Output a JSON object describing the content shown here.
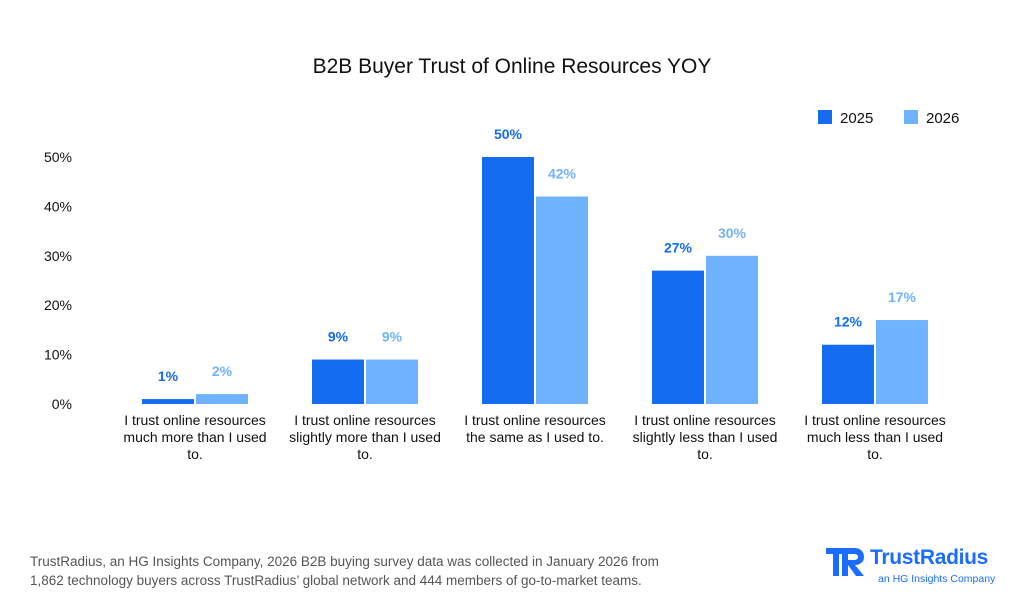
{
  "chart_data": {
    "type": "bar",
    "title": "B2B Buyer Trust of Online Resources YOY",
    "categories": [
      [
        "I trust online resources",
        "much more than I used",
        "to."
      ],
      [
        "I trust online resources",
        "slightly more than I used",
        "to."
      ],
      [
        "I trust online resources",
        "the same as I used to."
      ],
      [
        "I trust online resources",
        "slightly less than I used",
        "to."
      ],
      [
        "I trust online resources",
        "much less than I used",
        "to."
      ]
    ],
    "series": [
      {
        "name": "2025",
        "values": [
          1,
          9,
          50,
          27,
          12
        ],
        "labels": [
          "1%",
          "9%",
          "50%",
          "27%",
          "12%"
        ],
        "color": "#146cf0"
      },
      {
        "name": "2026",
        "values": [
          2,
          9,
          42,
          30,
          17
        ],
        "labels": [
          "2%",
          "9%",
          "42%",
          "30%",
          "17%"
        ],
        "color": "#6fb3ff"
      }
    ],
    "ylim": [
      0,
      50
    ],
    "yticks": [
      {
        "value": 0,
        "label": "0%"
      },
      {
        "value": 10,
        "label": "10%"
      },
      {
        "value": 20,
        "label": "20%"
      },
      {
        "value": 30,
        "label": "30%"
      },
      {
        "value": 40,
        "label": "40%"
      },
      {
        "value": 50,
        "label": "50%"
      }
    ],
    "grid": false,
    "legend": "top-right"
  },
  "footnote": {
    "line1": "TrustRadius, an HG Insights Company, 2026 B2B buying survey data was collected in January 2026 from",
    "line2": "1,862 technology buyers across TrustRadius’ global network and 444 members of go-to-market teams."
  },
  "logo": {
    "name": "TrustRadius",
    "tagline": "an HG Insights Company",
    "color": "#1a6dff"
  }
}
